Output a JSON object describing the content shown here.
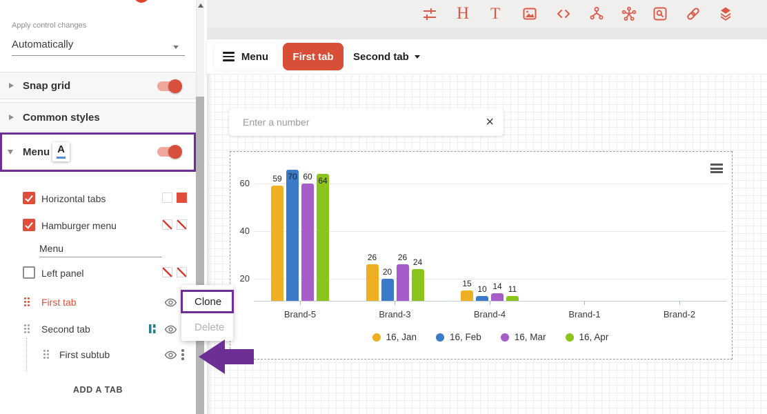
{
  "colors": {
    "accent_red": "#d9503c",
    "toolbar_icon_red": "#dc5947",
    "annotation_purple": "#6d2f96",
    "teal_icon": "#2e7d8e",
    "chart_baseline": "#c3cdd9"
  },
  "sidebar": {
    "apply_control": {
      "label": "Apply control changes",
      "value": "Automatically"
    },
    "sections": {
      "snap_grid": {
        "label": "Snap grid",
        "toggle": "on"
      },
      "common_styles": {
        "label": "Common styles"
      },
      "menu": {
        "label": "Menu",
        "toggle": "on",
        "font_icon_glyph": "A"
      }
    },
    "controls": {
      "horizontal_tabs": {
        "label": "Horizontal tabs",
        "checked": true
      },
      "hamburger_menu": {
        "label": "Hamburger menu",
        "checked": true
      },
      "menu_text": {
        "value": "Menu"
      },
      "left_panel": {
        "label": "Left panel",
        "checked": false
      }
    },
    "tabs": [
      {
        "label": "First tab"
      },
      {
        "label": "Second tab"
      },
      {
        "label": "First subtub"
      }
    ],
    "add_tab_label": "ADD A TAB"
  },
  "context_menu": {
    "items": [
      {
        "label": "Clone",
        "enabled": true
      },
      {
        "label": "Delete",
        "enabled": false
      }
    ]
  },
  "toolbar": {
    "icons": [
      "sliders-icon",
      "heading-icon",
      "text-icon",
      "image-icon",
      "code-icon",
      "share-node-icon",
      "cluster-node-icon",
      "search-box-icon",
      "link-icon",
      "layers-icon"
    ],
    "heading_glyph": "H",
    "text_glyph": "T"
  },
  "menu_bar": {
    "hamburger_label": "Menu",
    "active_tab": "First tab",
    "dropdown_tab": "Second tab"
  },
  "number_input": {
    "placeholder": "Enter a number"
  },
  "chart_data": {
    "type": "bar",
    "title": "",
    "categories": [
      "Brand-5",
      "Brand-3",
      "Brand-4",
      "Brand-1",
      "Brand-2"
    ],
    "series": [
      {
        "name": "16, Jan",
        "color": "#eeb022",
        "values": [
          59,
          26,
          15,
          null,
          null
        ]
      },
      {
        "name": "16, Feb",
        "color": "#3a7ac6",
        "values": [
          70,
          20,
          10,
          null,
          null
        ]
      },
      {
        "name": "16, Mar",
        "color": "#a75dc9",
        "values": [
          60,
          26,
          14,
          null,
          null
        ]
      },
      {
        "name": "16, Apr",
        "color": "#8cc41e",
        "values": [
          64,
          24,
          11,
          null,
          null
        ]
      }
    ],
    "yticks": [
      20,
      40,
      60
    ],
    "ylim": [
      0,
      70
    ],
    "grid": true,
    "legend_position": "bottom",
    "value_labels": true
  }
}
